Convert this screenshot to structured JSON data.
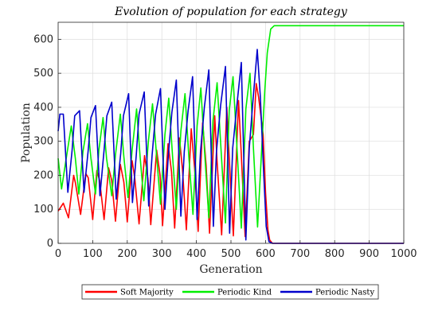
{
  "chart_data": {
    "type": "line",
    "title": "Evolution of population for each strategy",
    "xlabel": "Generation",
    "ylabel": "Population",
    "xlim": [
      0,
      1000
    ],
    "ylim": [
      0,
      650
    ],
    "x_ticks": [
      0,
      100,
      200,
      300,
      400,
      500,
      600,
      700,
      800,
      900,
      1000
    ],
    "y_ticks": [
      0,
      100,
      200,
      300,
      400,
      500,
      600
    ],
    "grid": true,
    "legend_position": "bottom-outside",
    "series": [
      {
        "name": "Soft Majority",
        "color": "#ff0000",
        "points": [
          [
            0,
            95
          ],
          [
            15,
            118
          ],
          [
            30,
            75
          ],
          [
            45,
            200
          ],
          [
            50,
            178
          ],
          [
            65,
            85
          ],
          [
            80,
            205
          ],
          [
            87,
            193
          ],
          [
            100,
            70
          ],
          [
            112,
            214
          ],
          [
            120,
            185
          ],
          [
            133,
            70
          ],
          [
            146,
            222
          ],
          [
            155,
            185
          ],
          [
            166,
            65
          ],
          [
            180,
            232
          ],
          [
            190,
            180
          ],
          [
            200,
            63
          ],
          [
            214,
            243
          ],
          [
            222,
            190
          ],
          [
            234,
            57
          ],
          [
            250,
            258
          ],
          [
            260,
            190
          ],
          [
            268,
            55
          ],
          [
            285,
            274
          ],
          [
            295,
            200
          ],
          [
            302,
            52
          ],
          [
            318,
            293
          ],
          [
            328,
            210
          ],
          [
            337,
            45
          ],
          [
            351,
            310
          ],
          [
            360,
            215
          ],
          [
            371,
            40
          ],
          [
            385,
            337
          ],
          [
            395,
            220
          ],
          [
            405,
            35
          ],
          [
            418,
            355
          ],
          [
            428,
            230
          ],
          [
            438,
            30
          ],
          [
            453,
            375
          ],
          [
            460,
            240
          ],
          [
            473,
            25
          ],
          [
            488,
            400
          ],
          [
            495,
            250
          ],
          [
            507,
            22
          ],
          [
            522,
            420
          ],
          [
            530,
            260
          ],
          [
            541,
            20
          ],
          [
            553,
            300
          ],
          [
            565,
            320
          ],
          [
            573,
            470
          ],
          [
            580,
            430
          ],
          [
            593,
            320
          ],
          [
            600,
            150
          ],
          [
            607,
            40
          ],
          [
            612,
            10
          ],
          [
            620,
            0
          ],
          [
            1000,
            0
          ]
        ]
      },
      {
        "name": "Periodic Kind",
        "color": "#00ee00",
        "points": [
          [
            0,
            250
          ],
          [
            10,
            160
          ],
          [
            22,
            240
          ],
          [
            38,
            345
          ],
          [
            50,
            248
          ],
          [
            60,
            145
          ],
          [
            72,
            270
          ],
          [
            85,
            352
          ],
          [
            95,
            250
          ],
          [
            108,
            145
          ],
          [
            118,
            275
          ],
          [
            130,
            370
          ],
          [
            140,
            250
          ],
          [
            155,
            140
          ],
          [
            166,
            260
          ],
          [
            180,
            380
          ],
          [
            190,
            255
          ],
          [
            202,
            135
          ],
          [
            214,
            275
          ],
          [
            227,
            395
          ],
          [
            237,
            255
          ],
          [
            248,
            125
          ],
          [
            261,
            300
          ],
          [
            273,
            410
          ],
          [
            285,
            255
          ],
          [
            296,
            115
          ],
          [
            309,
            320
          ],
          [
            320,
            427
          ],
          [
            331,
            255
          ],
          [
            342,
            100
          ],
          [
            355,
            330
          ],
          [
            367,
            440
          ],
          [
            378,
            255
          ],
          [
            390,
            85
          ],
          [
            402,
            345
          ],
          [
            413,
            457
          ],
          [
            424,
            265
          ],
          [
            436,
            75
          ],
          [
            448,
            360
          ],
          [
            460,
            472
          ],
          [
            472,
            265
          ],
          [
            484,
            60
          ],
          [
            495,
            390
          ],
          [
            506,
            490
          ],
          [
            518,
            270
          ],
          [
            530,
            45
          ],
          [
            543,
            395
          ],
          [
            555,
            500
          ],
          [
            565,
            280
          ],
          [
            577,
            48
          ],
          [
            590,
            300
          ],
          [
            598,
            450
          ],
          [
            605,
            560
          ],
          [
            615,
            630
          ],
          [
            625,
            640
          ],
          [
            1000,
            640
          ]
        ]
      },
      {
        "name": "Periodic Nasty",
        "color": "#0000cc",
        "points": [
          [
            0,
            330
          ],
          [
            5,
            380
          ],
          [
            15,
            380
          ],
          [
            28,
            150
          ],
          [
            40,
            270
          ],
          [
            48,
            375
          ],
          [
            62,
            390
          ],
          [
            75,
            150
          ],
          [
            87,
            275
          ],
          [
            95,
            370
          ],
          [
            108,
            405
          ],
          [
            121,
            140
          ],
          [
            133,
            275
          ],
          [
            141,
            375
          ],
          [
            155,
            415
          ],
          [
            168,
            130
          ],
          [
            181,
            265
          ],
          [
            189,
            375
          ],
          [
            204,
            440
          ],
          [
            215,
            120
          ],
          [
            226,
            260
          ],
          [
            234,
            380
          ],
          [
            249,
            445
          ],
          [
            262,
            110
          ],
          [
            272,
            260
          ],
          [
            282,
            380
          ],
          [
            296,
            455
          ],
          [
            309,
            100
          ],
          [
            319,
            260
          ],
          [
            329,
            385
          ],
          [
            342,
            480
          ],
          [
            355,
            80
          ],
          [
            365,
            270
          ],
          [
            376,
            390
          ],
          [
            389,
            490
          ],
          [
            402,
            70
          ],
          [
            412,
            270
          ],
          [
            423,
            400
          ],
          [
            436,
            510
          ],
          [
            449,
            50
          ],
          [
            458,
            270
          ],
          [
            470,
            405
          ],
          [
            484,
            520
          ],
          [
            496,
            30
          ],
          [
            505,
            280
          ],
          [
            517,
            405
          ],
          [
            530,
            532
          ],
          [
            543,
            10
          ],
          [
            553,
            280
          ],
          [
            563,
            410
          ],
          [
            576,
            570
          ],
          [
            585,
            430
          ],
          [
            595,
            200
          ],
          [
            602,
            50
          ],
          [
            610,
            5
          ],
          [
            620,
            0
          ],
          [
            1000,
            0
          ]
        ]
      }
    ]
  }
}
